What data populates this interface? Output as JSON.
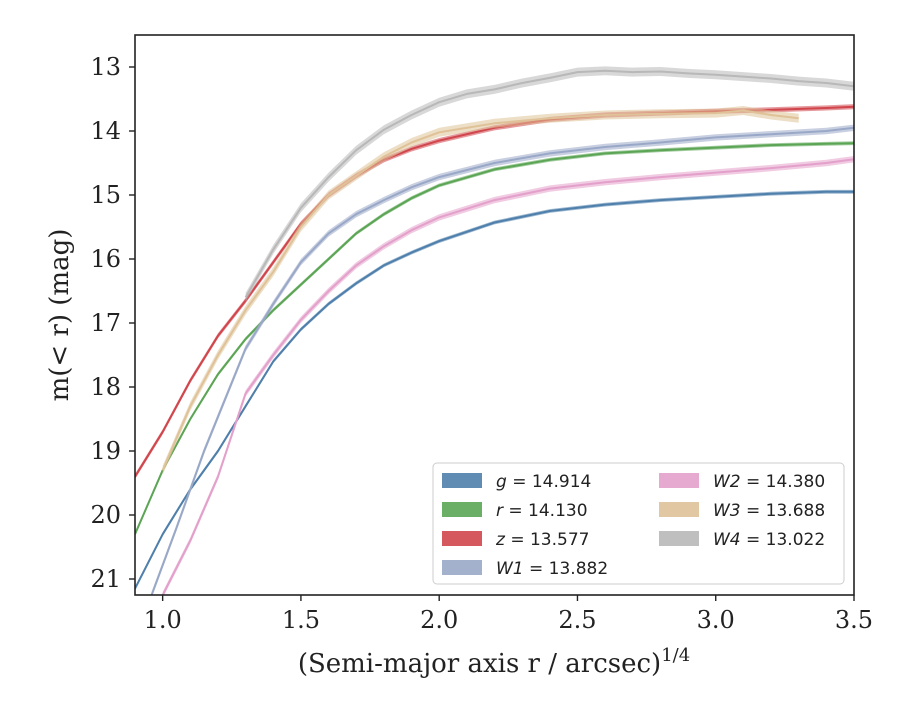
{
  "chart_data": {
    "type": "line",
    "title": "",
    "xlabel": "(Semi-major axis r / arcsec)",
    "xlabel_superscript": "1/4",
    "ylabel": "m(< r) (mag)",
    "xlim": [
      0.9,
      3.5
    ],
    "ylim": [
      21.25,
      12.5
    ],
    "y_inverted": true,
    "grid": false,
    "legend_position": "lower-right",
    "x_ticks": [
      "1.0",
      "1.5",
      "2.0",
      "2.5",
      "3.0",
      "3.5"
    ],
    "y_ticks": [
      "13",
      "14",
      "15",
      "16",
      "17",
      "18",
      "19",
      "20",
      "21"
    ],
    "series": [
      {
        "name": "g = 14.914",
        "label_math": "g",
        "label_value": "= 14.914",
        "color": "#4f7fab",
        "band_width_mag": 0.06,
        "x": [
          0.9,
          1.0,
          1.1,
          1.2,
          1.3,
          1.4,
          1.5,
          1.6,
          1.7,
          1.8,
          1.9,
          2.0,
          2.2,
          2.4,
          2.6,
          2.8,
          3.0,
          3.2,
          3.4,
          3.5
        ],
        "y": [
          21.15,
          20.3,
          19.6,
          19.0,
          18.3,
          17.6,
          17.1,
          16.7,
          16.38,
          16.1,
          15.9,
          15.72,
          15.43,
          15.25,
          15.15,
          15.08,
          15.03,
          14.98,
          14.95,
          14.95
        ]
      },
      {
        "name": "r = 14.130",
        "label_math": "r",
        "label_value": "= 14.130",
        "color": "#5ba555",
        "band_width_mag": 0.06,
        "x": [
          0.9,
          1.0,
          1.1,
          1.2,
          1.3,
          1.4,
          1.5,
          1.6,
          1.7,
          1.8,
          1.9,
          2.0,
          2.2,
          2.4,
          2.6,
          2.8,
          3.0,
          3.2,
          3.4,
          3.5
        ],
        "y": [
          20.3,
          19.3,
          18.5,
          17.8,
          17.25,
          16.8,
          16.4,
          16.0,
          15.6,
          15.3,
          15.05,
          14.85,
          14.6,
          14.45,
          14.35,
          14.3,
          14.26,
          14.22,
          14.2,
          14.19
        ]
      },
      {
        "name": "z = 13.577",
        "label_math": "z",
        "label_value": "= 13.577",
        "color": "#d0464c",
        "band_width_mag": 0.08,
        "x": [
          0.9,
          1.0,
          1.1,
          1.2,
          1.3,
          1.4,
          1.5,
          1.6,
          1.7,
          1.8,
          1.9,
          2.0,
          2.2,
          2.4,
          2.6,
          2.8,
          3.0,
          3.2,
          3.4,
          3.5
        ],
        "y": [
          19.4,
          18.7,
          17.9,
          17.2,
          16.65,
          16.05,
          15.45,
          15.0,
          14.7,
          14.45,
          14.28,
          14.15,
          13.95,
          13.82,
          13.75,
          13.72,
          13.69,
          13.67,
          13.64,
          13.62
        ]
      },
      {
        "name": "W1 = 13.882",
        "label_math": "W1",
        "label_value": "= 13.882",
        "color": "#9aa8c8",
        "band_width_mag": 0.1,
        "x": [
          0.96,
          1.05,
          1.15,
          1.3,
          1.4,
          1.5,
          1.6,
          1.7,
          1.8,
          1.9,
          2.0,
          2.2,
          2.4,
          2.6,
          2.8,
          3.0,
          3.2,
          3.4,
          3.5
        ],
        "y": [
          21.25,
          20.2,
          19.0,
          17.4,
          16.7,
          16.05,
          15.6,
          15.3,
          15.08,
          14.88,
          14.72,
          14.5,
          14.35,
          14.25,
          14.18,
          14.1,
          14.05,
          14.0,
          13.95
        ]
      },
      {
        "name": "W2 = 14.380",
        "label_math": "W2",
        "label_value": "= 14.380",
        "color": "#e3a0cb",
        "band_width_mag": 0.1,
        "x": [
          1.0,
          1.1,
          1.2,
          1.3,
          1.4,
          1.5,
          1.6,
          1.7,
          1.8,
          1.9,
          2.0,
          2.2,
          2.4,
          2.6,
          2.8,
          3.0,
          3.2,
          3.4,
          3.5
        ],
        "y": [
          21.25,
          20.4,
          19.4,
          18.1,
          17.5,
          16.95,
          16.5,
          16.1,
          15.8,
          15.55,
          15.35,
          15.08,
          14.9,
          14.8,
          14.72,
          14.65,
          14.58,
          14.5,
          14.44
        ]
      },
      {
        "name": "W3 = 13.688",
        "label_math": "W3",
        "label_value": "= 13.688",
        "color": "#dfc298",
        "band_width_mag": 0.14,
        "x": [
          1.0,
          1.1,
          1.2,
          1.3,
          1.4,
          1.5,
          1.6,
          1.7,
          1.8,
          1.9,
          2.0,
          2.2,
          2.4,
          2.6,
          2.8,
          3.0,
          3.1,
          3.2,
          3.3
        ],
        "y": [
          19.3,
          18.3,
          17.5,
          16.8,
          16.2,
          15.5,
          15.0,
          14.7,
          14.4,
          14.18,
          14.02,
          13.88,
          13.8,
          13.75,
          13.73,
          13.72,
          13.68,
          13.75,
          13.8
        ]
      },
      {
        "name": "W4 = 13.022",
        "label_math": "W4",
        "label_value": "= 13.022",
        "color": "#b8b8b8",
        "band_width_mag": 0.14,
        "x": [
          1.3,
          1.4,
          1.5,
          1.6,
          1.7,
          1.8,
          1.9,
          2.0,
          2.1,
          2.2,
          2.3,
          2.4,
          2.5,
          2.6,
          2.7,
          2.8,
          2.9,
          3.0,
          3.1,
          3.2,
          3.3,
          3.4,
          3.5
        ],
        "y": [
          16.6,
          15.85,
          15.2,
          14.72,
          14.3,
          13.98,
          13.75,
          13.55,
          13.42,
          13.35,
          13.25,
          13.17,
          13.08,
          13.06,
          13.08,
          13.07,
          13.1,
          13.12,
          13.15,
          13.18,
          13.22,
          13.25,
          13.3
        ]
      }
    ]
  }
}
